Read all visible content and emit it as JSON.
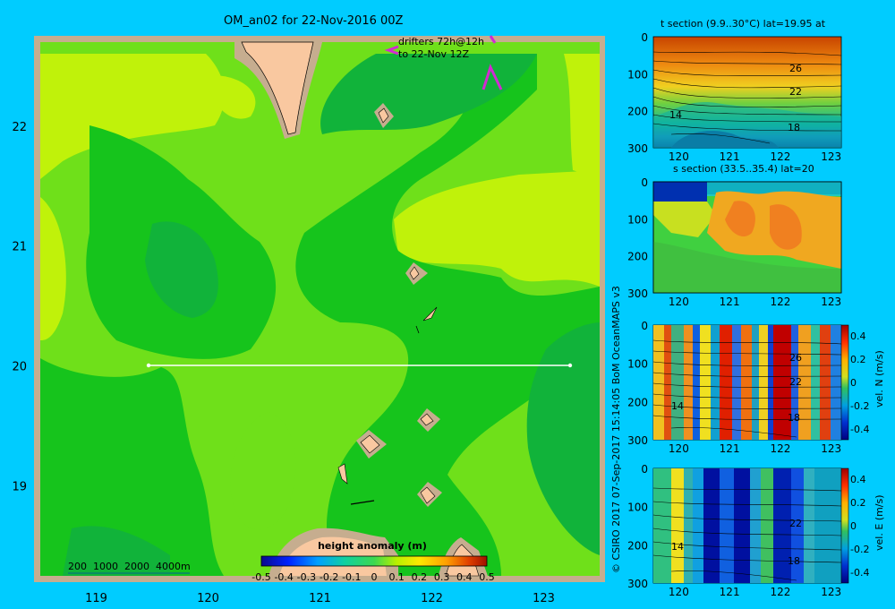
{
  "main_map": {
    "title": "OM_an02 for 22-Nov-2016 00Z",
    "drifter_note_1": "drifters 72h@12h",
    "drifter_note_2": "to 22-Nov 12Z",
    "depth_legend": "200  1000  2000  4000m",
    "colorbar_title": "height anomaly  (m)",
    "colorbar_ticks": [
      "-0.5",
      "-0.4",
      "-0.3",
      "-0.2",
      "-0.1",
      "0",
      "0.1",
      "0.2",
      "0.3",
      "0.4",
      "0.5"
    ],
    "x_ticks": [
      "119",
      "120",
      "121",
      "122",
      "123"
    ],
    "y_ticks": [
      "22",
      "21",
      "20",
      "19"
    ],
    "colors": {
      "land": "#f9c8a0",
      "shelf": "#c6ad8f",
      "field_mid": "#6fe01a",
      "field_high": "#c0f20a",
      "field_low": "#16c41c",
      "field_lower": "#11b33a",
      "section_line": "#ffffff",
      "drifter": "#d22ad2"
    }
  },
  "credit": "© CSIRO 2017   07-Sep-2017 15:14:05 BoM OceanMAPS v3",
  "panels": [
    {
      "title": "t section (9.9..30°C) lat=19.95 at",
      "y_ticks": [
        "0",
        "100",
        "200",
        "300"
      ],
      "x_ticks": [
        "120",
        "121",
        "122",
        "123"
      ],
      "contour_labels": [
        "26",
        "22",
        "18",
        "14"
      ],
      "colorbar": null
    },
    {
      "title": "s section (33.5..35.4) lat=20",
      "y_ticks": [
        "0",
        "100",
        "200",
        "300"
      ],
      "x_ticks": [
        "120",
        "121",
        "122",
        "123"
      ],
      "contour_labels": [],
      "colorbar": null
    },
    {
      "title": "",
      "y_ticks": [
        "0",
        "100",
        "200",
        "300"
      ],
      "x_ticks": [
        "120",
        "121",
        "122",
        "123"
      ],
      "contour_labels": [
        "26",
        "22",
        "18",
        "14"
      ],
      "colorbar": {
        "label": "vel. N (m/s)",
        "ticks": [
          "0.4",
          "0.2",
          "0",
          "-0.2",
          "-0.4"
        ]
      }
    },
    {
      "title": "",
      "y_ticks": [
        "0",
        "100",
        "200",
        "300"
      ],
      "x_ticks": [
        "120",
        "121",
        "122",
        "123"
      ],
      "contour_labels": [
        "22",
        "18",
        "14"
      ],
      "colorbar": {
        "label": "vel. E (m/s)",
        "ticks": [
          "0.4",
          "0.2",
          "0",
          "-0.2",
          "-0.4"
        ]
      }
    }
  ],
  "chart_data": [
    {
      "type": "heatmap",
      "title": "OM_an02 for 22-Nov-2016 00Z",
      "variable": "height anomaly (m)",
      "xlim": [
        118.5,
        123.5
      ],
      "ylim": [
        18.25,
        22.7
      ],
      "x_ticks": [
        119,
        120,
        121,
        122,
        123
      ],
      "y_ticks": [
        19,
        20,
        21,
        22
      ],
      "color_range": [
        -0.5,
        0.5
      ],
      "section_line": {
        "lon": [
          119.5,
          123.2
        ],
        "lat": [
          20,
          20
        ]
      },
      "drifter_window": "drifters 72h@12h to 22-Nov 12Z"
    },
    {
      "type": "heatmap",
      "title": "t section (9.9..30°C) lat=19.95 at",
      "xlim": [
        119.5,
        123.2
      ],
      "ylim": [
        300,
        0
      ],
      "x_ticks": [
        120,
        121,
        122,
        123
      ],
      "y_ticks": [
        0,
        100,
        200,
        300
      ],
      "contours": [
        26,
        22,
        18,
        14
      ]
    },
    {
      "type": "heatmap",
      "title": "s section (33.5..35.4) lat=20",
      "xlim": [
        119.5,
        123.2
      ],
      "ylim": [
        300,
        0
      ],
      "x_ticks": [
        120,
        121,
        122,
        123
      ],
      "y_ticks": [
        0,
        100,
        200,
        300
      ]
    },
    {
      "type": "heatmap",
      "variable": "vel. N (m/s)",
      "xlim": [
        119.5,
        123.2
      ],
      "ylim": [
        300,
        0
      ],
      "color_range": [
        -0.4,
        0.4
      ],
      "contours": [
        26,
        22,
        18,
        14
      ]
    },
    {
      "type": "heatmap",
      "variable": "vel. E (m/s)",
      "xlim": [
        119.5,
        123.2
      ],
      "ylim": [
        300,
        0
      ],
      "color_range": [
        -0.4,
        0.4
      ],
      "contours": [
        22,
        18,
        14
      ]
    }
  ]
}
